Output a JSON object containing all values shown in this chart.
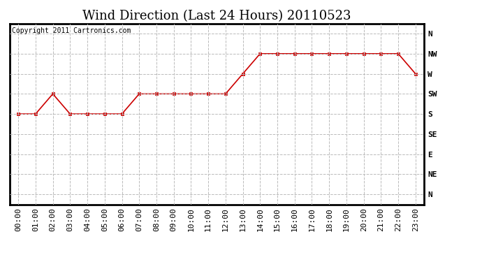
{
  "title": "Wind Direction (Last 24 Hours) 20110523",
  "copyright_text": "Copyright 2011 Cartronics.com",
  "x_labels": [
    "00:00",
    "01:00",
    "02:00",
    "03:00",
    "04:00",
    "05:00",
    "06:00",
    "07:00",
    "08:00",
    "09:00",
    "10:00",
    "11:00",
    "12:00",
    "13:00",
    "14:00",
    "15:00",
    "16:00",
    "17:00",
    "18:00",
    "19:00",
    "20:00",
    "21:00",
    "22:00",
    "23:00"
  ],
  "y_labels": [
    "N",
    "NW",
    "W",
    "SW",
    "S",
    "SE",
    "E",
    "NE",
    "N"
  ],
  "y_tick_positions": [
    8,
    7,
    6,
    5,
    4,
    3,
    2,
    1,
    0
  ],
  "wind_data": [
    4,
    4,
    5,
    4,
    4,
    4,
    4,
    5,
    5,
    5,
    5,
    5,
    5,
    6,
    7,
    7,
    7,
    7,
    7,
    7,
    7,
    7,
    7,
    6
  ],
  "line_color": "#cc0000",
  "marker": "s",
  "marker_size": 3,
  "grid_color": "#bbbbbb",
  "bg_color": "#ffffff",
  "title_fontsize": 13,
  "axis_fontsize": 8,
  "copyright_fontsize": 7,
  "fig_width": 6.9,
  "fig_height": 3.75,
  "fig_dpi": 100
}
